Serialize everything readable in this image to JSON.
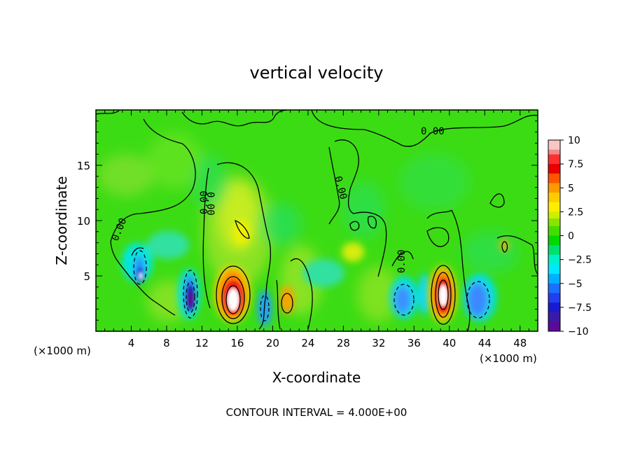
{
  "chart_data": {
    "type": "heatmap",
    "title": "vertical velocity",
    "xlabel": "X-coordinate",
    "ylabel": "Z-coordinate",
    "x_unit_left": "(×1000 m)",
    "x_unit_right": "(×1000 m)",
    "xlim": [
      0,
      50
    ],
    "ylim": [
      0,
      20
    ],
    "x_ticks": [
      "4",
      "8",
      "12",
      "16",
      "20",
      "24",
      "28",
      "32",
      "36",
      "40",
      "44",
      "48"
    ],
    "y_ticks": [
      "5",
      "10",
      "15"
    ],
    "footer": "CONTOUR INTERVAL = 4.000E+00",
    "contour_labels": [
      "0.00",
      "0.00",
      "0.00",
      "0.00",
      "0.00",
      "0.00"
    ],
    "colorbar": {
      "ticks": [
        "10",
        "7.5",
        "5",
        "2.5",
        "0",
        "−2.5",
        "−5",
        "−7.5",
        "−10"
      ],
      "range": [
        -10,
        10
      ],
      "colors": [
        "#f5b6b6",
        "#ee1111",
        "#ff7700",
        "#ffff00",
        "#00dd00",
        "#00ffee",
        "#2288ff",
        "#2222cc",
        "#660088"
      ]
    },
    "features": [
      {
        "kind": "updraft",
        "x": 15.6,
        "z": 3.2,
        "peak": 12
      },
      {
        "kind": "updraft",
        "x": 39.2,
        "z": 3.2,
        "peak": 12
      },
      {
        "kind": "downdraft",
        "x": 10.8,
        "z": 3.0,
        "peak": -10
      },
      {
        "kind": "downdraft",
        "x": 5.0,
        "z": 5.2,
        "peak": -7
      },
      {
        "kind": "downdraft",
        "x": 34.8,
        "z": 3.0,
        "peak": -5
      },
      {
        "kind": "downdraft",
        "x": 43.0,
        "z": 2.8,
        "peak": -5
      },
      {
        "kind": "downdraft",
        "x": 18.8,
        "z": 2.0,
        "peak": -4
      },
      {
        "kind": "updraft",
        "x": 22.0,
        "z": 2.8,
        "peak": 4
      },
      {
        "kind": "updraft",
        "x": 16.0,
        "z": 10.0,
        "peak": 3
      }
    ]
  }
}
